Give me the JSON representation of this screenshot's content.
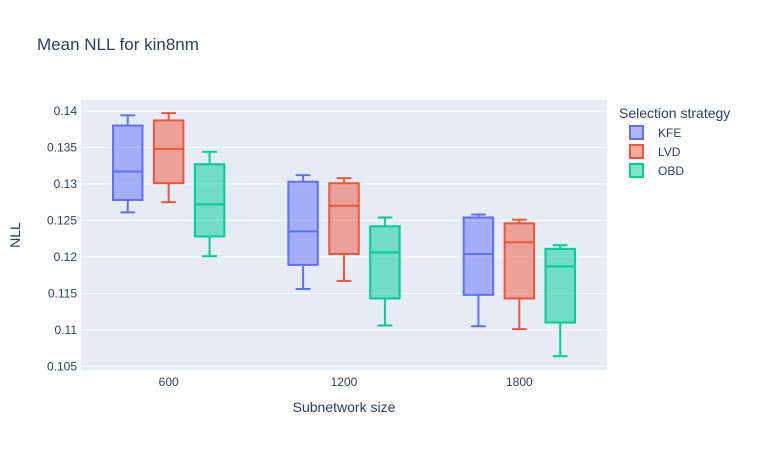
{
  "chart_data": {
    "type": "box",
    "title": "Mean NLL for kin8nm",
    "xlabel": "Subnetwork size",
    "ylabel": "NLL",
    "categories": [
      "600",
      "1200",
      "1800"
    ],
    "ylim": [
      0.1045,
      0.1415
    ],
    "yticks": [
      0.105,
      0.11,
      0.115,
      0.12,
      0.125,
      0.13,
      0.135,
      0.14
    ],
    "ytick_labels": [
      "0.105",
      "0.11",
      "0.115",
      "0.12",
      "0.125",
      "0.13",
      "0.135",
      "0.14"
    ],
    "grid": true,
    "legend": {
      "title": "Selection strategy",
      "position": "right"
    },
    "series": [
      {
        "name": "KFE",
        "color": "#636efa",
        "boxes": [
          {
            "min": 0.1261,
            "q1": 0.1278,
            "median": 0.1317,
            "q3": 0.138,
            "max": 0.1394
          },
          {
            "min": 0.1156,
            "q1": 0.1189,
            "median": 0.1235,
            "q3": 0.1303,
            "max": 0.1312
          },
          {
            "min": 0.1105,
            "q1": 0.1148,
            "median": 0.1204,
            "q3": 0.1254,
            "max": 0.1258
          }
        ]
      },
      {
        "name": "LVD",
        "color": "#ef553b",
        "boxes": [
          {
            "min": 0.1275,
            "q1": 0.1301,
            "median": 0.1348,
            "q3": 0.1387,
            "max": 0.1397
          },
          {
            "min": 0.1167,
            "q1": 0.1204,
            "median": 0.127,
            "q3": 0.1301,
            "max": 0.1308
          },
          {
            "min": 0.1101,
            "q1": 0.1143,
            "median": 0.122,
            "q3": 0.1246,
            "max": 0.1251
          }
        ]
      },
      {
        "name": "OBD",
        "color": "#00cc96",
        "boxes": [
          {
            "min": 0.1201,
            "q1": 0.1228,
            "median": 0.1272,
            "q3": 0.1327,
            "max": 0.1344
          },
          {
            "min": 0.1106,
            "q1": 0.1143,
            "median": 0.1206,
            "q3": 0.1242,
            "max": 0.1254
          },
          {
            "min": 0.1064,
            "q1": 0.111,
            "median": 0.1187,
            "q3": 0.1211,
            "max": 0.1216
          }
        ]
      }
    ]
  }
}
